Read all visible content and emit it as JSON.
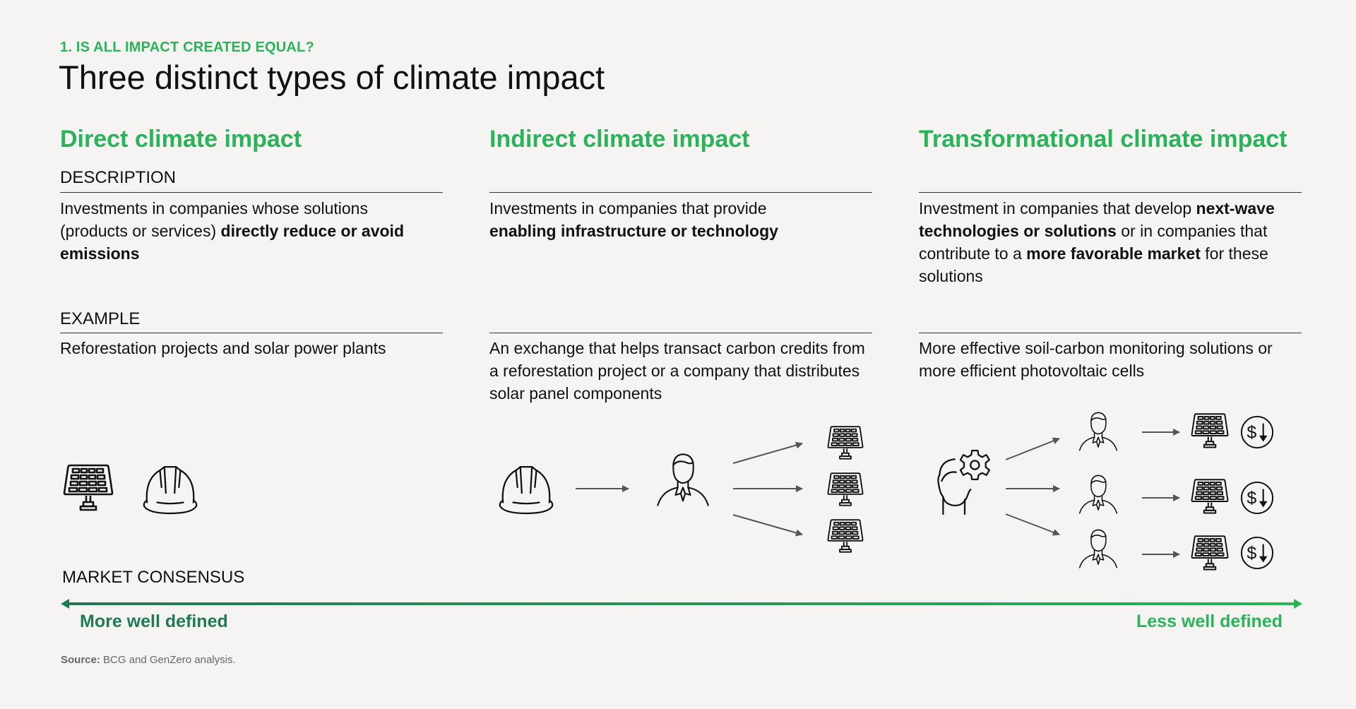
{
  "header": {
    "kicker": "1. IS ALL IMPACT CREATED EQUAL?",
    "title": "Three distinct types of climate impact"
  },
  "labels": {
    "description": "DESCRIPTION",
    "example": "EXAMPLE"
  },
  "columns": [
    {
      "heading": "Direct climate impact",
      "description": [
        {
          "text": "Investments in companies whose solutions (products or services) ",
          "bold": false
        },
        {
          "text": "directly reduce or avoid emissions",
          "bold": true
        }
      ],
      "example": "Reforestation projects and solar power plants",
      "icons": [
        "solar-panel-icon",
        "hard-hat-icon"
      ]
    },
    {
      "heading": "Indirect climate impact",
      "description": [
        {
          "text": "Investments in companies that provide ",
          "bold": false
        },
        {
          "text": "enabling infrastructure or technology",
          "bold": true
        }
      ],
      "example": "An exchange that helps transact carbon credits from a reforestation project or a company that distributes solar panel components",
      "icons": [
        "hard-hat-icon",
        "arrow-icon",
        "person-icon",
        "solar-panel-icon"
      ]
    },
    {
      "heading": "Transformational climate impact",
      "description": [
        {
          "text": "Investment in companies that develop ",
          "bold": false
        },
        {
          "text": "next-wave technologies or solutions",
          "bold": true
        },
        {
          "text": " or in companies that contribute to a ",
          "bold": false
        },
        {
          "text": "more favorable market",
          "bold": true
        },
        {
          "text": " for these solutions",
          "bold": false
        }
      ],
      "example": "More effective soil-carbon monitoring solutions or more efficient photovoltaic cells",
      "icons": [
        "head-gear-icon",
        "arrow-icon",
        "person-icon",
        "solar-panel-icon",
        "dollar-down-icon"
      ]
    }
  ],
  "market": {
    "label": "MARKET CONSENSUS",
    "left": "More well defined",
    "right": "Less well defined"
  },
  "source": {
    "label": "Source:",
    "text": " BCG and GenZero analysis."
  },
  "colors": {
    "green": "#2bb35a",
    "dark_green": "#1f7a55",
    "background": "#f5f4f2",
    "icon": "#111111",
    "arrow": "#555555"
  }
}
